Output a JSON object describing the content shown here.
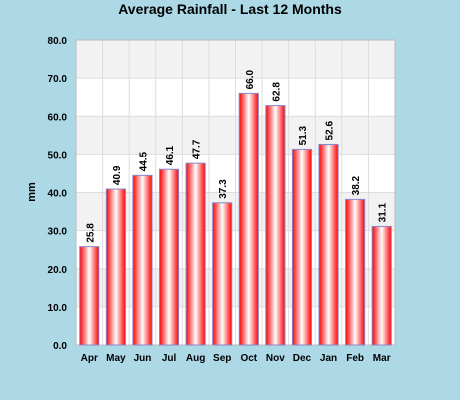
{
  "chart_data": {
    "type": "bar",
    "title": "Average Rainfall - Last 12 Months",
    "xlabel": "",
    "ylabel": "mm",
    "categories": [
      "Apr",
      "May",
      "Jun",
      "Jul",
      "Aug",
      "Sep",
      "Oct",
      "Nov",
      "Dec",
      "Jan",
      "Feb",
      "Mar"
    ],
    "values": [
      25.8,
      40.9,
      44.5,
      46.1,
      47.7,
      37.3,
      66.0,
      62.8,
      51.3,
      52.6,
      38.2,
      31.1
    ],
    "value_labels": [
      "25.8",
      "40.9",
      "44.5",
      "46.1",
      "47.7",
      "37.3",
      "66.0",
      "62.8",
      "51.3",
      "52.6",
      "38.2",
      "31.1"
    ],
    "ylim": [
      0,
      80
    ],
    "yticks": [
      "0.0",
      "10.0",
      "20.0",
      "30.0",
      "40.0",
      "50.0",
      "60.0",
      "70.0",
      "80.0"
    ],
    "grid": true,
    "legend": "none",
    "colors": {
      "page_background": "#add8e6",
      "bar_edge": "#ff0000",
      "bar_center": "#ffffff",
      "bar_outline": "#8888cc",
      "band_alt": "#f2f2f2",
      "plot_background": "#ffffff",
      "grid": "#dddddd"
    }
  }
}
